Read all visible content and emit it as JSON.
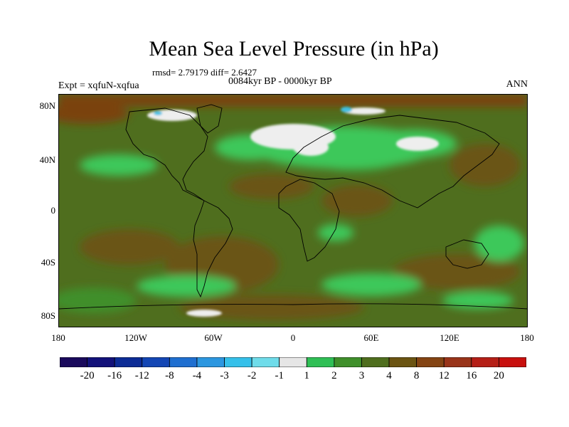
{
  "figure": {
    "title": "Mean Sea Level Pressure (in hPa)",
    "stats": "rmsd= 2.79179 diff= 2.6427",
    "subtitle": "0084kyr BP - 0000kyr BP",
    "experiment": "Expt = xqfuN-xqfua",
    "season": "ANN"
  },
  "axes": {
    "lat_labels": [
      "80N",
      "40N",
      "0",
      "40S",
      "80S"
    ],
    "lon_labels": [
      "180",
      "120W",
      "60W",
      "0",
      "60E",
      "120E",
      "180"
    ]
  },
  "colorbar": {
    "labels": [
      "-20",
      "-16",
      "-12",
      "-8",
      "-4",
      "-3",
      "-2",
      "-1",
      "1",
      "2",
      "3",
      "4",
      "8",
      "12",
      "16",
      "20"
    ],
    "colors": [
      "#1a0a5c",
      "#13127a",
      "#0d2c96",
      "#1446b4",
      "#1f6fd0",
      "#2c97e0",
      "#35c0ea",
      "#6fdcea",
      "#e6e6e6",
      "#2fbf55",
      "#3f8f2a",
      "#4f6e1e",
      "#6b5412",
      "#844413",
      "#993419",
      "#b51f17",
      "#c8100e"
    ]
  },
  "map_colors": {
    "base": "#4f6e1e",
    "light_green": "#3ec85a",
    "mid_green": "#3f8f2a",
    "brown": "#6b5412",
    "dark_brown": "#7a4310",
    "white": "#eeeeee",
    "cyan": "#41bfe3",
    "coast": "#000000"
  }
}
